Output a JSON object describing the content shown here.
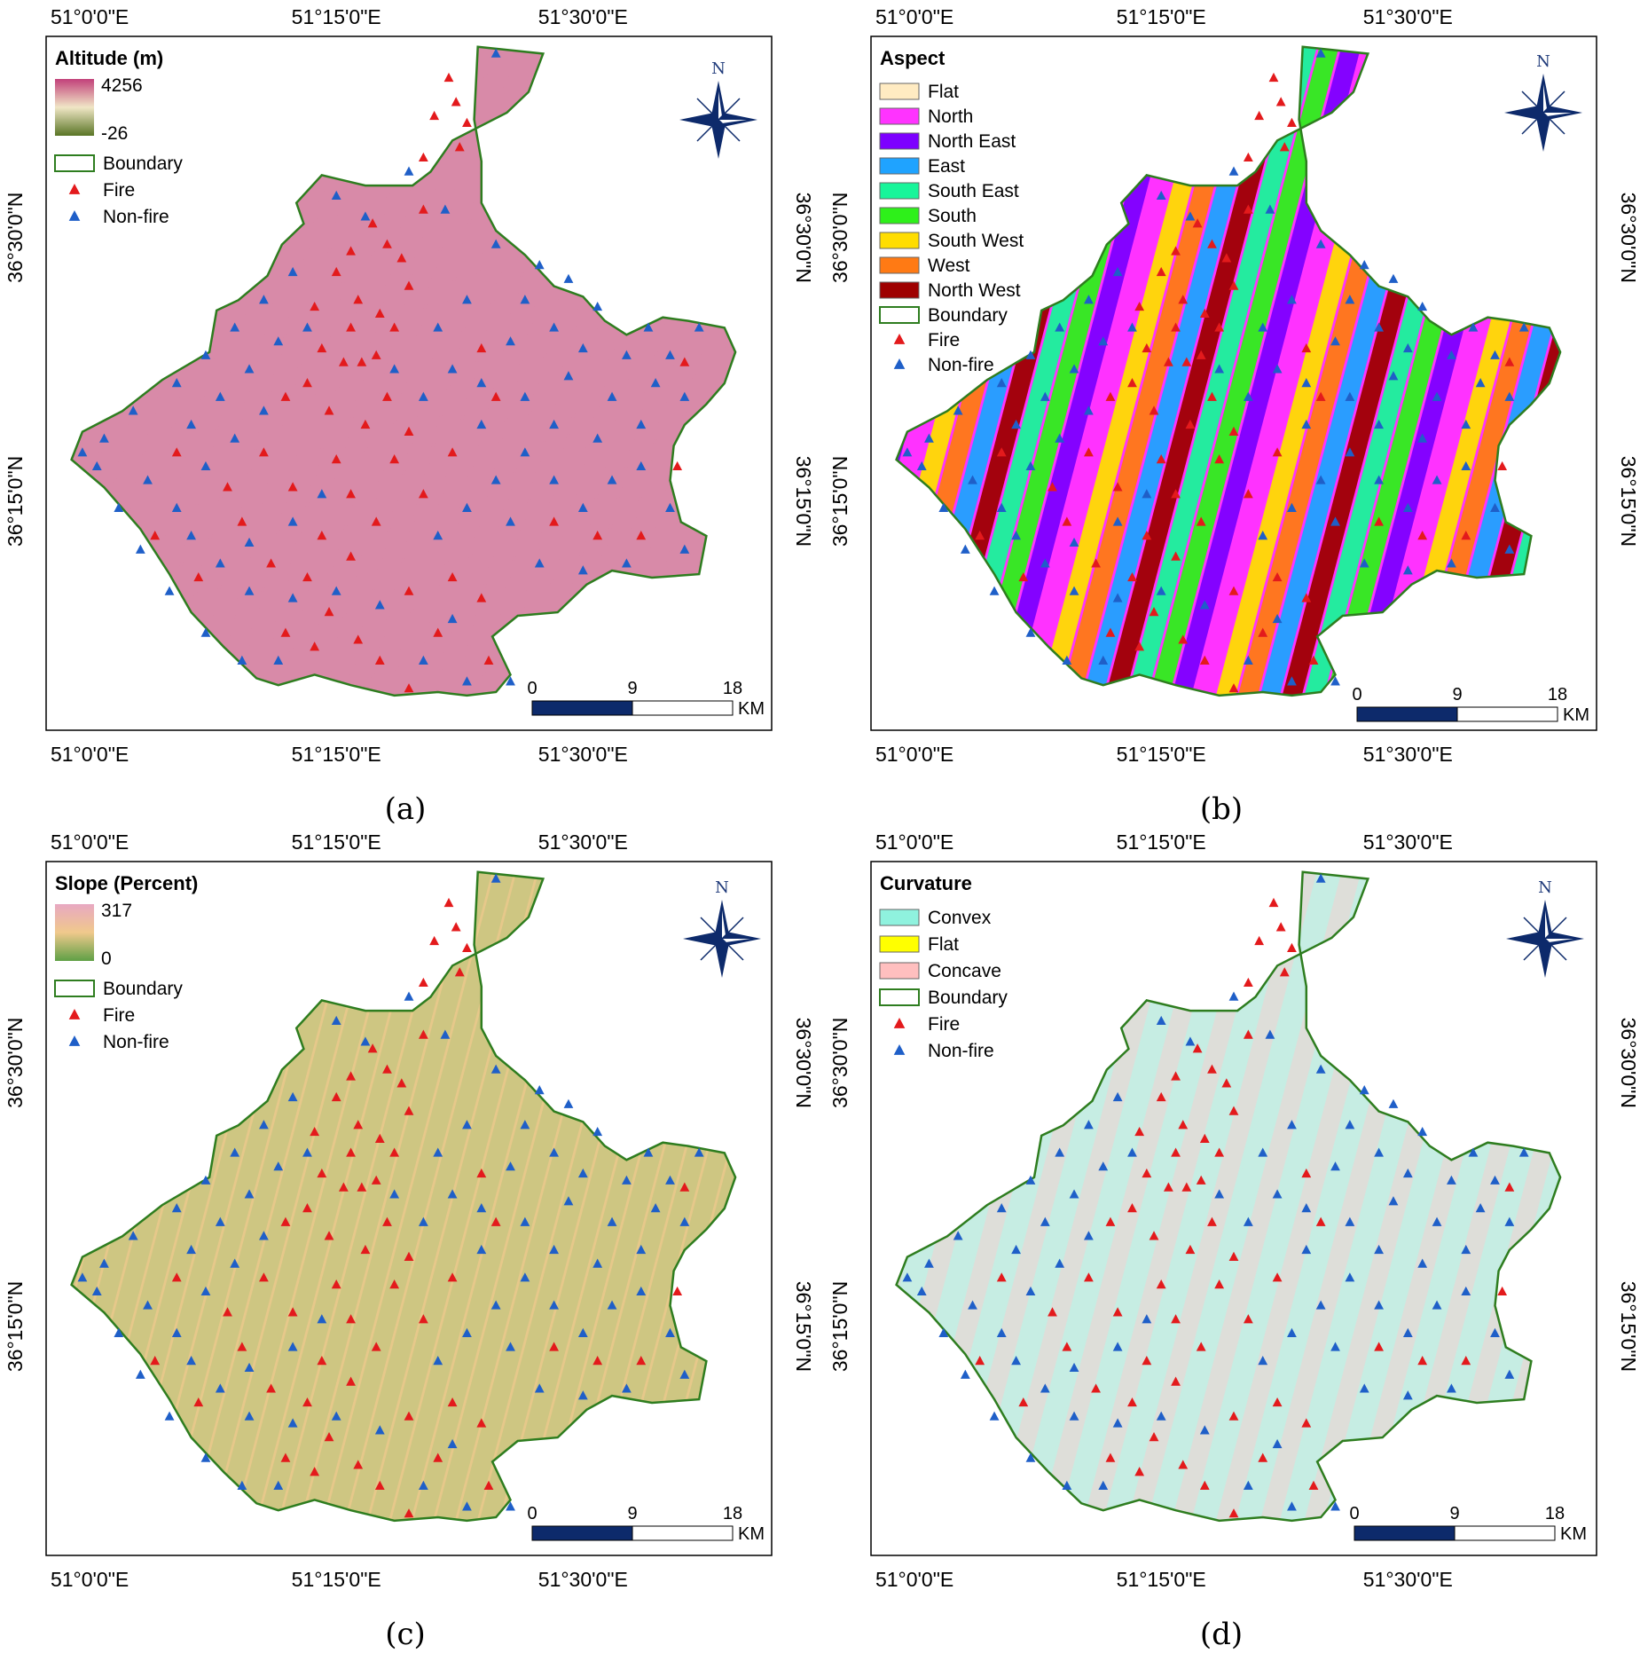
{
  "panels": [
    {
      "id": "a",
      "caption": "(a)",
      "legend_title": "Altitude (m)",
      "legend_type": "ramp",
      "ramp_max": "4256",
      "ramp_min": "-26",
      "ramp_colors": [
        "#c2407a",
        "#f0e6c6",
        "#5a7526"
      ],
      "items": [
        {
          "label": "Boundary",
          "kind": "boundary"
        },
        {
          "label": "Fire",
          "kind": "fire"
        },
        {
          "label": "Non-fire",
          "kind": "nonfire"
        }
      ],
      "fill_colors": [
        "#d88aa8",
        "#e9dcb4",
        "#b7b572"
      ],
      "scale_labels": [
        "0",
        "9",
        "18"
      ],
      "scale_unit": "KM"
    },
    {
      "id": "b",
      "caption": "(b)",
      "legend_title": "Aspect",
      "legend_type": "classes",
      "items": [
        {
          "label": "Flat",
          "kind": "swatch",
          "color": "#ffebc2"
        },
        {
          "label": "North",
          "kind": "swatch",
          "color": "#ff33ff"
        },
        {
          "label": "North East",
          "kind": "swatch",
          "color": "#7d00ff"
        },
        {
          "label": "East",
          "kind": "swatch",
          "color": "#1fa3ff"
        },
        {
          "label": "South East",
          "kind": "swatch",
          "color": "#18f59a"
        },
        {
          "label": "South",
          "kind": "swatch",
          "color": "#2ef01a"
        },
        {
          "label": "South West",
          "kind": "swatch",
          "color": "#ffdd00"
        },
        {
          "label": "West",
          "kind": "swatch",
          "color": "#ff7a14"
        },
        {
          "label": "North West",
          "kind": "swatch",
          "color": "#9e0000"
        },
        {
          "label": "Boundary",
          "kind": "boundary"
        },
        {
          "label": "Fire",
          "kind": "fire"
        },
        {
          "label": "Non-fire",
          "kind": "nonfire"
        }
      ],
      "fill_colors": [
        "#ff33ff",
        "#1fa3ff",
        "#2ef01a",
        "#ffdd00",
        "#9e0000",
        "#7d00ff",
        "#ff7a14",
        "#18f59a"
      ],
      "scale_labels": [
        "0",
        "9",
        "18"
      ],
      "scale_unit": "KM"
    },
    {
      "id": "c",
      "caption": "(c)",
      "legend_title": "Slope (Percent)",
      "legend_type": "ramp",
      "ramp_max": "317",
      "ramp_min": "0",
      "ramp_colors": [
        "#e8a8c2",
        "#f0c98c",
        "#5fa045"
      ],
      "items": [
        {
          "label": "Boundary",
          "kind": "boundary"
        },
        {
          "label": "Fire",
          "kind": "fire"
        },
        {
          "label": "Non-fire",
          "kind": "nonfire"
        }
      ],
      "fill_colors": [
        "#e6c88a",
        "#d9a27e",
        "#b9c47c"
      ],
      "scale_labels": [
        "0",
        "9",
        "18"
      ],
      "scale_unit": "KM"
    },
    {
      "id": "d",
      "caption": "(d)",
      "legend_title": "Curvature",
      "legend_type": "classes",
      "items": [
        {
          "label": "Convex",
          "kind": "swatch",
          "color": "#8ff2de"
        },
        {
          "label": "Flat",
          "kind": "swatch",
          "color": "#ffff00"
        },
        {
          "label": "Concave",
          "kind": "swatch",
          "color": "#ffbfbf"
        },
        {
          "label": "Boundary",
          "kind": "boundary"
        },
        {
          "label": "Fire",
          "kind": "fire"
        },
        {
          "label": "Non-fire",
          "kind": "nonfire"
        }
      ],
      "fill_colors": [
        "#c6ede3",
        "#f3d2d2"
      ],
      "scale_labels": [
        "0",
        "9",
        "18"
      ],
      "scale_unit": "KM"
    }
  ],
  "lon_labels": [
    "51°0'0\"E",
    "51°15'0\"E",
    "51°30'0\"E"
  ],
  "lat_labels": [
    "36°30'0\"N",
    "36°15'0\"N"
  ],
  "north_label": "N",
  "colors": {
    "boundary": "#2e7d1f",
    "fire": "#e31a1c",
    "nonfire": "#1f5fc8",
    "scalebar": "#0d2a6b",
    "north_arrow": "#0d2a6b"
  }
}
